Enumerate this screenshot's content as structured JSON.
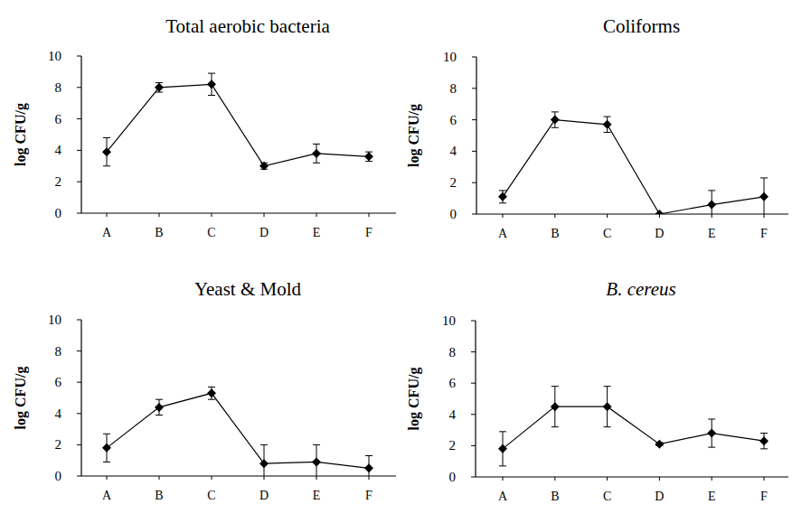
{
  "chart_data": [
    {
      "type": "line",
      "title": "Total aerobic bacteria",
      "y_label": "log CFU/g",
      "categories": [
        "A",
        "B",
        "C",
        "D",
        "E",
        "F"
      ],
      "values": [
        3.9,
        8.0,
        8.2,
        3.0,
        3.8,
        3.6
      ],
      "errors": [
        0.9,
        0.3,
        0.7,
        0.2,
        0.6,
        0.3
      ],
      "ylim": [
        0,
        10
      ],
      "yticks": [
        0,
        2,
        4,
        6,
        8,
        10
      ],
      "color": "#000000",
      "marker": "diamond"
    },
    {
      "type": "line",
      "title": "Coliforms",
      "y_label": "log CFU/g",
      "categories": [
        "A",
        "B",
        "C",
        "D",
        "E",
        "F"
      ],
      "values": [
        1.1,
        6.0,
        5.7,
        0,
        0.6,
        1.1
      ],
      "errors": [
        0.4,
        0.5,
        0.5,
        0,
        0.9,
        1.2
      ],
      "ylim": [
        0,
        10
      ],
      "yticks": [
        0,
        2,
        4,
        6,
        8,
        10
      ],
      "color": "#000000",
      "marker": "diamond"
    },
    {
      "type": "line",
      "title": "Yeast & Mold",
      "y_label": "log CFU/g",
      "categories": [
        "A",
        "B",
        "C",
        "D",
        "E",
        "F"
      ],
      "values": [
        1.8,
        4.4,
        5.3,
        0.8,
        0.9,
        0.5
      ],
      "errors": [
        0.9,
        0.5,
        0.4,
        1.2,
        1.1,
        0.8
      ],
      "ylim": [
        0,
        10
      ],
      "yticks": [
        0,
        2,
        4,
        6,
        8,
        10
      ],
      "color": "#000000",
      "marker": "diamond"
    },
    {
      "type": "line",
      "title": "B. cereus",
      "y_label": "log CFU/g",
      "categories": [
        "A",
        "B",
        "C",
        "D",
        "E",
        "F"
      ],
      "values": [
        1.8,
        4.5,
        4.5,
        2.1,
        2.8,
        2.3
      ],
      "errors": [
        1.1,
        1.3,
        1.3,
        0.1,
        0.9,
        0.5
      ],
      "ylim": [
        0,
        10
      ],
      "yticks": [
        0,
        2,
        4,
        6,
        8,
        10
      ],
      "color": "#000000",
      "marker": "diamond"
    }
  ]
}
